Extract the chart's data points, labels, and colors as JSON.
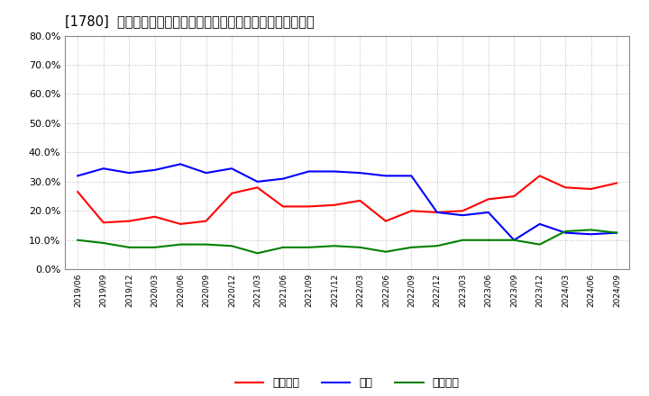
{
  "title": "[1780]  売上債権、在庫、買入債務の総資産に対する比率の推移",
  "x_labels": [
    "2019/06",
    "2019/09",
    "2019/12",
    "2020/03",
    "2020/06",
    "2020/09",
    "2020/12",
    "2021/03",
    "2021/06",
    "2021/09",
    "2021/12",
    "2022/03",
    "2022/06",
    "2022/09",
    "2022/12",
    "2023/03",
    "2023/06",
    "2023/09",
    "2023/12",
    "2024/03",
    "2024/06",
    "2024/09"
  ],
  "urikake": [
    0.265,
    0.16,
    0.165,
    0.18,
    0.155,
    0.165,
    0.26,
    0.28,
    0.215,
    0.215,
    0.22,
    0.235,
    0.165,
    0.2,
    0.195,
    0.2,
    0.24,
    0.25,
    0.32,
    0.28,
    0.275,
    0.295
  ],
  "zaiko": [
    0.32,
    0.345,
    0.33,
    0.34,
    0.36,
    0.33,
    0.345,
    0.3,
    0.31,
    0.335,
    0.335,
    0.33,
    0.32,
    0.32,
    0.195,
    0.185,
    0.195,
    0.1,
    0.155,
    0.125,
    0.12,
    0.125
  ],
  "kaiire": [
    0.1,
    0.09,
    0.075,
    0.075,
    0.085,
    0.085,
    0.08,
    0.055,
    0.075,
    0.075,
    0.08,
    0.075,
    0.06,
    0.075,
    0.08,
    0.1,
    0.1,
    0.1,
    0.085,
    0.13,
    0.135,
    0.125
  ],
  "ylim": [
    0.0,
    0.8
  ],
  "yticks": [
    0.0,
    0.1,
    0.2,
    0.3,
    0.4,
    0.5,
    0.6,
    0.7,
    0.8
  ],
  "color_urikake": "#ff0000",
  "color_zaiko": "#0000ff",
  "color_kaiire": "#008000",
  "legend_urikake": "売上債権",
  "legend_zaiko": "在庫",
  "legend_kaiire": "買入債務",
  "bg_color": "#ffffff",
  "grid_color": "#bbbbbb",
  "title_fontsize": 10.5
}
